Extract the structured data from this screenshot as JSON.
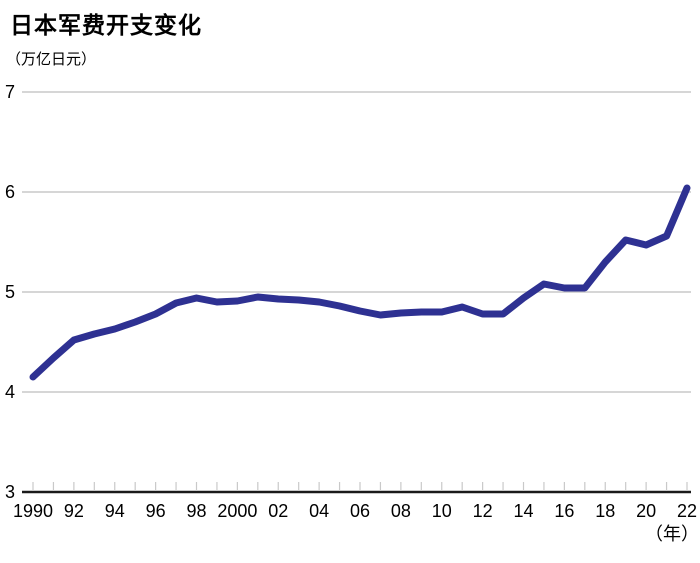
{
  "chart": {
    "title": "日本军费开支变化",
    "unit_label": "（万亿日元）",
    "year_suffix_label": "（年）"
  },
  "chart_data": {
    "type": "line",
    "title": "日本军费开支变化",
    "ylabel": "（万亿日元）",
    "xlabel": "（年）",
    "x": [
      1990,
      1991,
      1992,
      1993,
      1994,
      1995,
      1996,
      1997,
      1998,
      1999,
      2000,
      2001,
      2002,
      2003,
      2004,
      2005,
      2006,
      2007,
      2008,
      2009,
      2010,
      2011,
      2012,
      2013,
      2014,
      2015,
      2016,
      2017,
      2018,
      2019,
      2020,
      2021,
      2022
    ],
    "values": [
      4.15,
      4.34,
      4.52,
      4.58,
      4.63,
      4.7,
      4.78,
      4.89,
      4.94,
      4.9,
      4.91,
      4.95,
      4.93,
      4.92,
      4.9,
      4.86,
      4.81,
      4.77,
      4.79,
      4.8,
      4.8,
      4.85,
      4.78,
      4.78,
      4.94,
      5.08,
      5.04,
      5.04,
      5.3,
      5.52,
      5.47,
      5.56,
      6.04
    ],
    "series_name": "日本军费开支",
    "ylim": [
      3,
      7
    ],
    "y_ticks": [
      3,
      4,
      5,
      6,
      7
    ],
    "x_tick_years": [
      1990,
      1992,
      1994,
      1996,
      1998,
      2000,
      2002,
      2004,
      2006,
      2008,
      2010,
      2012,
      2014,
      2016,
      2018,
      2020,
      2022
    ],
    "x_tick_labels": [
      "1990",
      "92",
      "94",
      "96",
      "98",
      "2000",
      "02",
      "04",
      "06",
      "08",
      "10",
      "12",
      "14",
      "16",
      "18",
      "20",
      "22"
    ],
    "minor_tick_every_year": true,
    "grid": true,
    "legend_position": "none",
    "line_color": "#2e3192",
    "grid_color": "#c9c9c9",
    "axis_color": "#1a1a1a",
    "minor_tick_color": "#c9c9c9"
  }
}
